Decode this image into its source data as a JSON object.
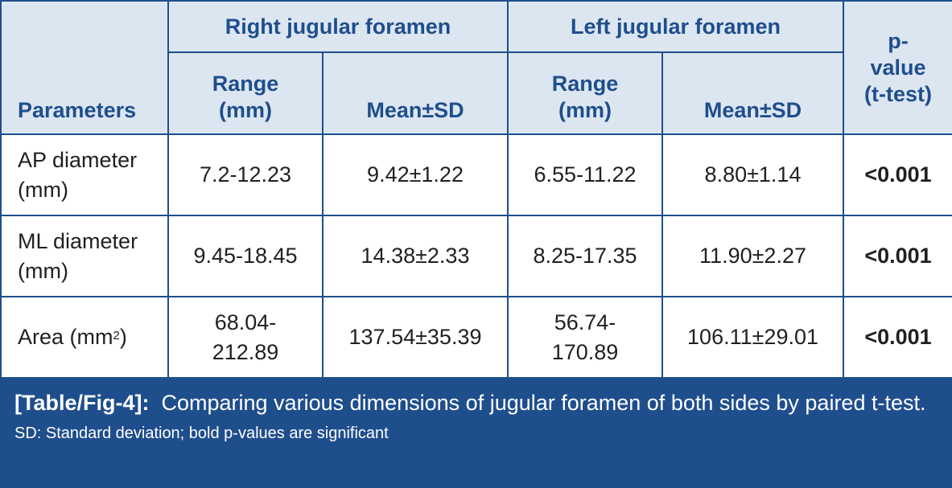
{
  "table": {
    "header": {
      "parameters": "Parameters",
      "right_group": "Right jugular foramen",
      "left_group": "Left jugular foramen",
      "p_value": [
        "p-",
        "value",
        "(t-test)"
      ],
      "range": [
        "Range",
        "(mm)"
      ],
      "mean_sd": "Mean±SD"
    },
    "rows": [
      {
        "param": [
          "AP diameter",
          "(mm)"
        ],
        "right_range": [
          "7.2-12.23"
        ],
        "right_mean": "9.42±1.22",
        "left_range": [
          "6.55-11.22"
        ],
        "left_mean": "8.80±1.14",
        "p": "<0.001"
      },
      {
        "param": [
          "ML diameter",
          "(mm)"
        ],
        "right_range": [
          "9.45-18.45"
        ],
        "right_mean": "14.38±2.33",
        "left_range": [
          "8.25-17.35"
        ],
        "left_mean": "11.90±2.27",
        "p": "<0.001"
      },
      {
        "param_prefix": "Area (mm",
        "param_sup": "2",
        "param_suffix": ")",
        "right_range": [
          "68.04-",
          "212.89"
        ],
        "right_mean": "137.54±35.39",
        "left_range": [
          "56.74-",
          "170.89"
        ],
        "left_mean": "106.11±29.01",
        "p": "<0.001"
      }
    ]
  },
  "caption": {
    "label": "[Table/Fig-4]:",
    "text": "Comparing various dimensions of jugular foramen of both sides by paired t-test.",
    "note": "SD: Standard deviation; bold p-values are significant"
  },
  "colors": {
    "border": "#1f4e8c",
    "header_bg": "#dce6f1",
    "header_text": "#1f4e8c",
    "caption_bg": "#1f4e8c"
  }
}
